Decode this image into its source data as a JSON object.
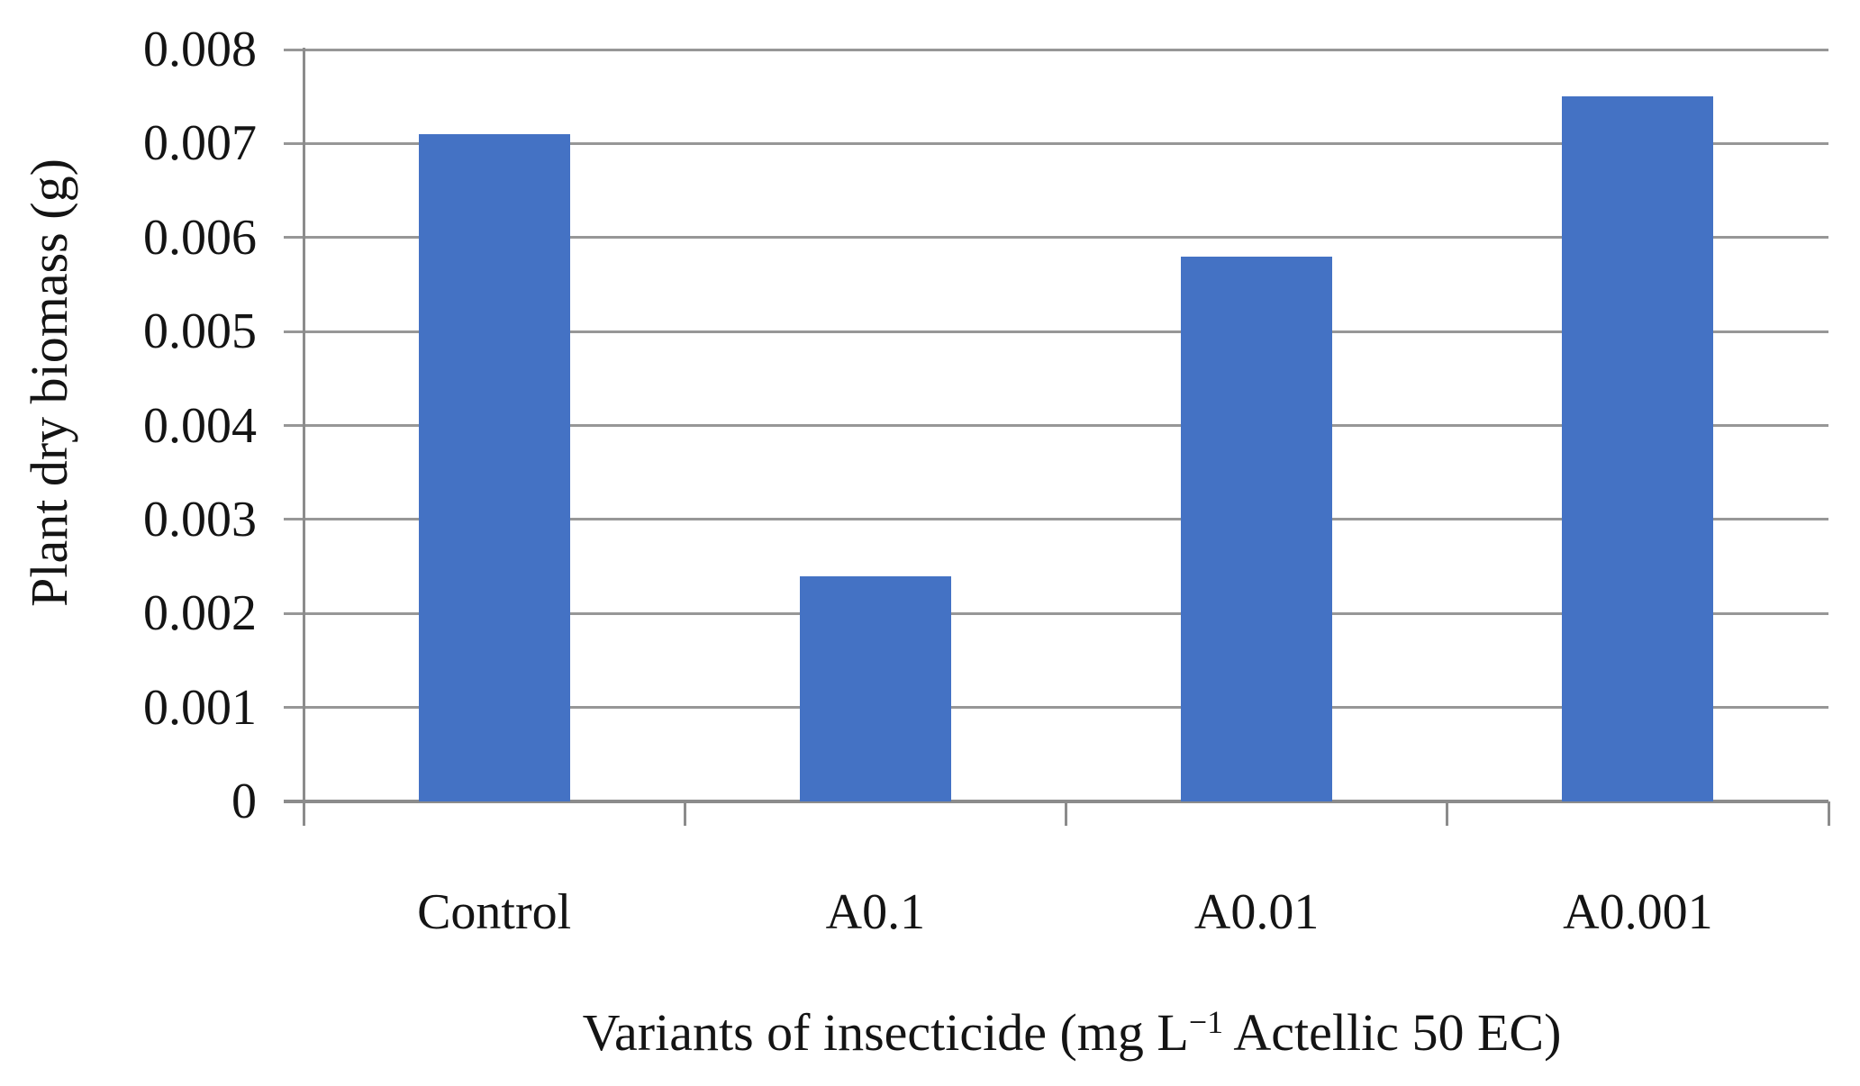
{
  "figure": {
    "background": "#ffffff"
  },
  "chart_data": {
    "type": "bar",
    "categories": [
      "Control",
      "A0.1",
      "A0.01",
      "A0.001"
    ],
    "values": [
      0.0071,
      0.0024,
      0.0058,
      0.0075
    ],
    "title": "",
    "ylabel": "Plant dry biomass (g)",
    "xlabel_parts": {
      "pre": "Variants of insecticide (mg L",
      "sup": "−1",
      "post": " Actellic 50 EC)"
    },
    "ylim": [
      0,
      0.008
    ],
    "ytick_labels": [
      "0",
      "0.001",
      "0.002",
      "0.003",
      "0.004",
      "0.005",
      "0.006",
      "0.007",
      "0.008"
    ],
    "grid": "horizontal",
    "legend": "none",
    "bar_color": "#4472C4",
    "grid_color": "#979797",
    "axis_color": "#8C8C8C",
    "text_color": "#141414"
  }
}
